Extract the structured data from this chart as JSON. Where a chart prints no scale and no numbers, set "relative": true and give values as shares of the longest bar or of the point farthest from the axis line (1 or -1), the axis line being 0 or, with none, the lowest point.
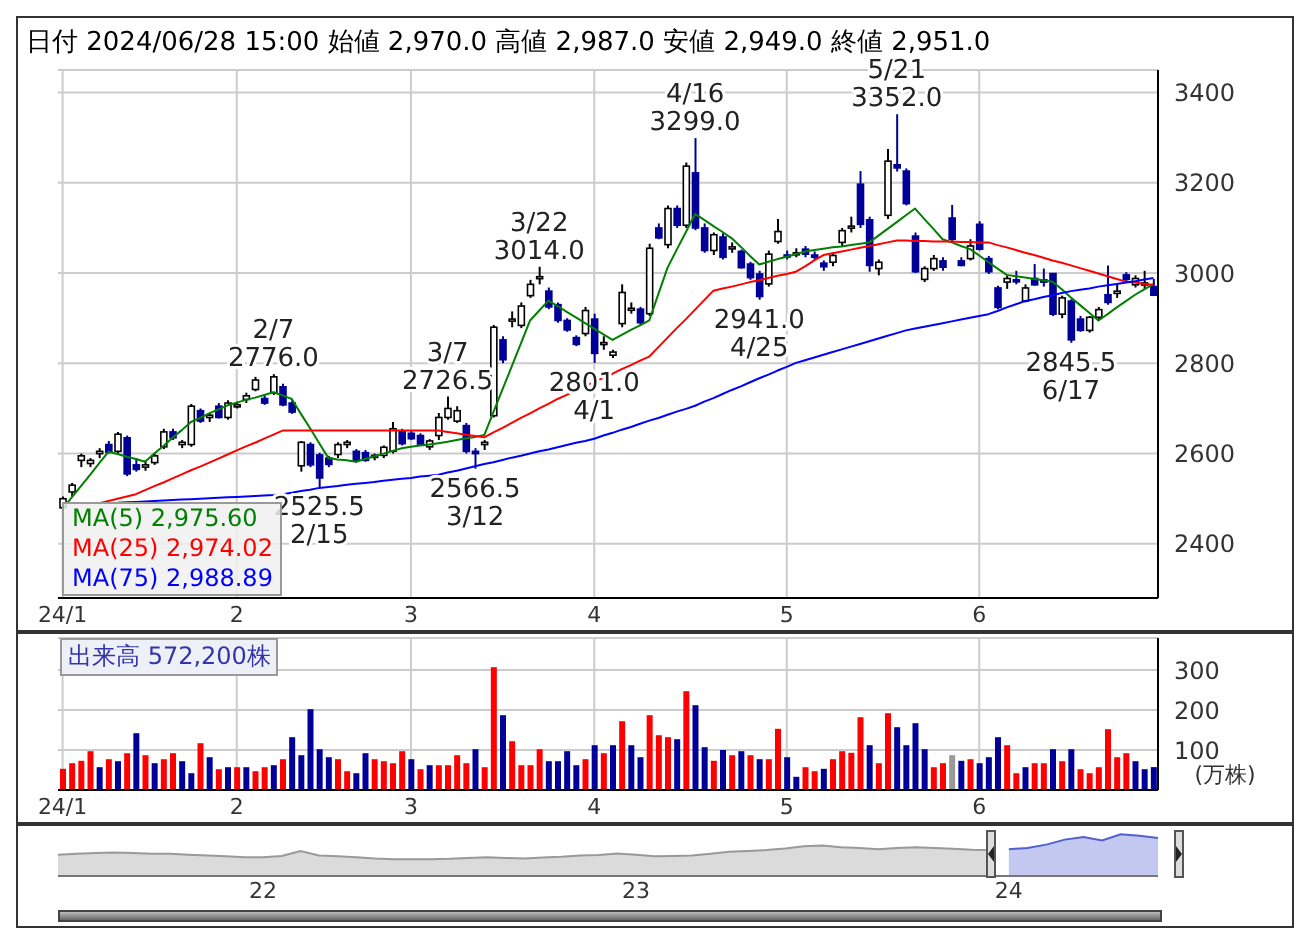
{
  "chart_data": [
    {
      "type": "candlestick",
      "title": "日付 2024/06/28 15:00 始値 2,970.0 高値 2,987.0 安値 2,949.0 終値 2,951.0",
      "categories": [
        "24/1",
        null,
        null,
        null,
        null,
        null,
        null,
        null,
        null,
        null,
        null,
        null,
        null,
        null,
        null,
        null,
        null,
        null,
        null,
        "2",
        null,
        null,
        null,
        null,
        null,
        null,
        null,
        null,
        null,
        null,
        null,
        null,
        null,
        null,
        null,
        null,
        null,
        null,
        "3",
        null,
        null,
        null,
        null,
        null,
        null,
        null,
        null,
        null,
        null,
        null,
        null,
        null,
        null,
        null,
        null,
        null,
        null,
        null,
        "4",
        null,
        null,
        null,
        null,
        null,
        null,
        null,
        null,
        null,
        null,
        null,
        null,
        null,
        null,
        null,
        null,
        null,
        null,
        null,
        null,
        "5",
        null,
        null,
        null,
        null,
        null,
        null,
        null,
        null,
        null,
        null,
        null,
        null,
        null,
        null,
        null,
        null,
        null,
        null,
        null,
        null,
        "6",
        null,
        null,
        null,
        null,
        null,
        null,
        null,
        null,
        null,
        null,
        null,
        null,
        null,
        null,
        null,
        null,
        null,
        null,
        null
      ],
      "ohlc": [
        [
          2480,
          2505,
          2470,
          2500
        ],
        [
          2515,
          2535,
          2505,
          2530
        ],
        [
          2585,
          2600,
          2570,
          2595
        ],
        [
          2578,
          2590,
          2570,
          2585
        ],
        [
          2600,
          2612,
          2590,
          2605
        ],
        [
          2620,
          2628,
          2600,
          2603
        ],
        [
          2605,
          2648,
          2600,
          2643
        ],
        [
          2635,
          2640,
          2550,
          2555
        ],
        [
          2575,
          2590,
          2560,
          2565
        ],
        [
          2570,
          2585,
          2562,
          2575
        ],
        [
          2580,
          2600,
          2575,
          2595
        ],
        [
          2615,
          2655,
          2610,
          2648
        ],
        [
          2648,
          2655,
          2630,
          2635
        ],
        [
          2620,
          2630,
          2612,
          2625
        ],
        [
          2620,
          2710,
          2615,
          2705
        ],
        [
          2695,
          2700,
          2668,
          2672
        ],
        [
          2680,
          2690,
          2670,
          2685
        ],
        [
          2705,
          2712,
          2678,
          2680
        ],
        [
          2680,
          2718,
          2675,
          2712
        ],
        [
          2705,
          2715,
          2700,
          2708
        ],
        [
          2720,
          2735,
          2712,
          2728
        ],
        [
          2742,
          2770,
          2738,
          2763
        ],
        [
          2722,
          2730,
          2708,
          2712
        ],
        [
          2735,
          2776.0,
          2730,
          2770
        ],
        [
          2748,
          2755,
          2705,
          2708
        ],
        [
          2712,
          2718,
          2688,
          2692
        ],
        [
          2573,
          2628,
          2560,
          2625
        ],
        [
          2620,
          2625,
          2570,
          2575
        ],
        [
          2597,
          2602,
          2525.5,
          2546
        ],
        [
          2590,
          2595,
          2570,
          2576
        ],
        [
          2598,
          2625,
          2590,
          2620
        ],
        [
          2620,
          2630,
          2612,
          2625
        ],
        [
          2605,
          2610,
          2580,
          2585
        ],
        [
          2602,
          2608,
          2582,
          2585
        ],
        [
          2592,
          2600,
          2585,
          2596
        ],
        [
          2596,
          2618,
          2590,
          2614
        ],
        [
          2605,
          2670,
          2600,
          2655
        ],
        [
          2650,
          2655,
          2618,
          2622
        ],
        [
          2645,
          2650,
          2630,
          2633
        ],
        [
          2640,
          2645,
          2618,
          2621
        ],
        [
          2615,
          2632,
          2608,
          2628
        ],
        [
          2640,
          2690,
          2630,
          2680
        ],
        [
          2680,
          2726.5,
          2675,
          2700
        ],
        [
          2672,
          2705,
          2668,
          2695
        ],
        [
          2662,
          2668,
          2600,
          2605
        ],
        [
          2605,
          2612,
          2566.5,
          2600
        ],
        [
          2620,
          2630,
          2608,
          2625
        ],
        [
          2684,
          2885,
          2680,
          2880
        ],
        [
          2852,
          2860,
          2800,
          2808
        ],
        [
          2895,
          2915,
          2880,
          2898
        ],
        [
          2884,
          2935,
          2878,
          2927
        ],
        [
          2950,
          2985,
          2945,
          2975
        ],
        [
          2990,
          3014.0,
          2975,
          2992
        ],
        [
          2960,
          2968,
          2920,
          2925
        ],
        [
          2930,
          2935,
          2890,
          2895
        ],
        [
          2895,
          2900,
          2870,
          2874
        ],
        [
          2857,
          2862,
          2838,
          2842
        ],
        [
          2866,
          2925,
          2860,
          2917
        ],
        [
          2898,
          2910,
          2801.0,
          2822
        ],
        [
          2842,
          2860,
          2830,
          2846
        ],
        [
          2818,
          2830,
          2812,
          2825
        ],
        [
          2888,
          2975,
          2880,
          2957
        ],
        [
          2920,
          2935,
          2910,
          2922
        ],
        [
          2920,
          2925,
          2885,
          2890
        ],
        [
          2910,
          3065,
          2905,
          3055
        ],
        [
          3100,
          3110,
          3075,
          3078
        ],
        [
          3063,
          3150,
          3055,
          3143
        ],
        [
          3143,
          3150,
          3100,
          3106
        ],
        [
          3106,
          3245,
          3100,
          3237
        ],
        [
          3222,
          3299.0,
          3095,
          3100
        ],
        [
          3100,
          3110,
          3045,
          3050
        ],
        [
          3050,
          3090,
          3040,
          3085
        ],
        [
          3080,
          3088,
          3030,
          3035
        ],
        [
          3055,
          3068,
          3045,
          3058
        ],
        [
          3048,
          3052,
          3010,
          3012
        ],
        [
          3020,
          3025,
          2985,
          2990
        ],
        [
          2998,
          3005,
          2941.0,
          2948
        ],
        [
          2976,
          3050,
          2970,
          3042
        ],
        [
          3070,
          3120,
          3065,
          3092
        ],
        [
          3040,
          3050,
          3030,
          3038
        ],
        [
          3042,
          3055,
          3035,
          3045
        ],
        [
          3053,
          3060,
          3035,
          3042
        ],
        [
          3040,
          3048,
          3030,
          3035
        ],
        [
          3022,
          3028,
          3005,
          3014
        ],
        [
          3024,
          3045,
          3015,
          3039
        ],
        [
          3068,
          3100,
          3060,
          3094
        ],
        [
          3100,
          3125,
          3090,
          3104
        ],
        [
          3197,
          3226,
          3100,
          3108
        ],
        [
          3118,
          3125,
          3003,
          3017
        ],
        [
          3010,
          3030,
          2995,
          3024
        ],
        [
          3128,
          3275,
          3120,
          3248
        ],
        [
          3240,
          3352.0,
          3225,
          3233
        ],
        [
          3226,
          3232,
          3150,
          3154
        ],
        [
          3082,
          3090,
          3000,
          3003
        ],
        [
          2986,
          3015,
          2980,
          3010
        ],
        [
          3010,
          3040,
          3005,
          3032
        ],
        [
          3027,
          3035,
          3005,
          3013
        ],
        [
          3122,
          3151,
          3070,
          3075
        ],
        [
          3027,
          3035,
          3015,
          3017
        ],
        [
          3032,
          3075,
          3028,
          3060
        ],
        [
          3108,
          3115,
          3050,
          3053
        ],
        [
          3032,
          3038,
          2998,
          3003
        ],
        [
          2967,
          2972,
          2920,
          2924
        ],
        [
          2980,
          2995,
          2965,
          2988
        ],
        [
          2985,
          3005,
          2975,
          2982
        ],
        [
          2938,
          2975,
          2935,
          2967
        ],
        [
          2988,
          3020,
          2972,
          2974
        ],
        [
          2985,
          3010,
          2970,
          2980
        ],
        [
          2999,
          3000,
          2905,
          2909
        ],
        [
          2909,
          2950,
          2900,
          2945
        ],
        [
          2938,
          2942,
          2845.5,
          2852
        ],
        [
          2898,
          2905,
          2870,
          2873
        ],
        [
          2873,
          2905,
          2868,
          2902
        ],
        [
          2902,
          2925,
          2895,
          2919
        ],
        [
          2952,
          3017,
          2930,
          2935
        ],
        [
          2955,
          2975,
          2945,
          2960
        ],
        [
          2996,
          3002,
          2980,
          2986
        ],
        [
          2974,
          2995,
          2968,
          2988
        ],
        [
          2975,
          3005,
          2965,
          2978
        ],
        [
          2970,
          2987.0,
          2949.0,
          2951.0
        ]
      ],
      "colors": [
        "#ffffff",
        "#ffffff",
        "#ffffff",
        "#ffffff",
        "#ffffff",
        "#000099",
        "#ffffff",
        "#000099",
        "#000099",
        "#ffffff",
        "#ffffff",
        "#ffffff",
        "#000099",
        "#ffffff",
        "#ffffff",
        "#000099",
        "#ffffff",
        "#000099",
        "#ffffff",
        "#ffffff",
        "#ffffff",
        "#ffffff",
        "#000099",
        "#ffffff",
        "#000099",
        "#000099",
        "#ffffff",
        "#000099",
        "#000099",
        "#000099",
        "#ffffff",
        "#ffffff",
        "#000099",
        "#000099",
        "#ffffff",
        "#ffffff",
        "#ffffff",
        "#000099",
        "#000099",
        "#000099",
        "#ffffff",
        "#ffffff",
        "#ffffff",
        "#ffffff",
        "#000099",
        "#000099",
        "#ffffff",
        "#ffffff",
        "#000099",
        "#ffffff",
        "#ffffff",
        "#ffffff",
        "#ffffff",
        "#000099",
        "#000099",
        "#000099",
        "#000099",
        "#ffffff",
        "#000099",
        "#ffffff",
        "#ffffff",
        "#ffffff",
        "#ffffff",
        "#000099",
        "#ffffff",
        "#000099",
        "#ffffff",
        "#000099",
        "#ffffff",
        "#000099",
        "#000099",
        "#ffffff",
        "#000099",
        "#ffffff",
        "#000099",
        "#000099",
        "#000099",
        "#ffffff",
        "#ffffff",
        "#000099",
        "#ffffff",
        "#000099",
        "#000099",
        "#000099",
        "#ffffff",
        "#ffffff",
        "#ffffff",
        "#000099",
        "#000099",
        "#ffffff",
        "#ffffff",
        "#000099",
        "#000099",
        "#000099",
        "#ffffff",
        "#ffffff",
        "#000099",
        "#000099",
        "#000099",
        "#ffffff",
        "#000099",
        "#000099",
        "#000099",
        "#ffffff",
        "#000099",
        "#ffffff",
        "#000099",
        "#000099",
        "#000099",
        "#ffffff",
        "#000099",
        "#000099",
        "#ffffff",
        "#ffffff",
        "#000099",
        "#ffffff",
        "#000099",
        "#ffffff",
        "#ffffff",
        "#000099"
      ],
      "series": [
        {
          "name": "MA(5) 2,975.60",
          "type": "line",
          "color": "#008000",
          "values": [
            2478,
            2503,
            2528,
            2553,
            2579,
            2604,
            2599,
            2593,
            2588,
            2582,
            2600,
            2617,
            2635,
            2652,
            2670,
            2679,
            2689,
            2698,
            2707,
            2713,
            2719,
            2724,
            2730,
            2736,
            2729,
            2721,
            2688,
            2656,
            2623,
            2590,
            2587,
            2585,
            2582,
            2588,
            2594,
            2600,
            2606,
            2612,
            2615,
            2618,
            2620,
            2623,
            2626,
            2630,
            2634,
            2637,
            2641,
            2692,
            2743,
            2793,
            2844,
            2895,
            2917,
            2939,
            2927,
            2914,
            2902,
            2889,
            2877,
            2864,
            2852,
            2863,
            2874,
            2884,
            2895,
            2954,
            3012,
            3052,
            3091,
            3131,
            3118,
            3104,
            3091,
            3077,
            3058,
            3038,
            3019,
            3025,
            3031,
            3036,
            3042,
            3048,
            3051,
            3054,
            3057,
            3059,
            3062,
            3065,
            3068,
            3083,
            3098,
            3113,
            3128,
            3143,
            3120,
            3098,
            3075,
            3068,
            3060,
            3053,
            3039,
            3024,
            3010,
            2996,
            2993,
            2990,
            2987,
            2984,
            2981,
            2964,
            2946,
            2929,
            2912,
            2895,
            2909,
            2924,
            2938,
            2952,
            2964,
            2975.6
          ]
        },
        {
          "name": "MA(25) 2,974.02",
          "type": "line",
          "color": "#ff0000",
          "values": [
            null,
            null,
            null,
            null,
            2490,
            2495,
            2500,
            2505,
            2510,
            2519,
            2528,
            2536,
            2545,
            2554,
            2563,
            2571,
            2580,
            2589,
            2598,
            2607,
            2616,
            2624,
            2633,
            2642,
            2651,
            2651,
            2651,
            2651,
            2651,
            2651,
            2651,
            2651,
            2651,
            2651,
            2651,
            2651,
            2651,
            2651,
            2651,
            2651,
            2651,
            2651,
            2648,
            2645,
            2642,
            2639,
            2636,
            2647,
            2657,
            2668,
            2679,
            2689,
            2700,
            2710,
            2721,
            2730,
            2740,
            2749,
            2759,
            2768,
            2777,
            2787,
            2796,
            2806,
            2815,
            2836,
            2857,
            2878,
            2898,
            2919,
            2940,
            2961,
            2966,
            2970,
            2975,
            2980,
            2984,
            2989,
            2994,
            2998,
            3003,
            3015,
            3028,
            3040,
            3044,
            3048,
            3052,
            3056,
            3060,
            3064,
            3068,
            3072,
            3072,
            3071,
            3071,
            3070,
            3070,
            3070,
            3069,
            3069,
            3068,
            3068,
            3062,
            3057,
            3051,
            3045,
            3040,
            3034,
            3028,
            3023,
            3017,
            3011,
            3005,
            2999,
            2993,
            2987,
            2981,
            2979,
            2976,
            2974.02
          ]
        },
        {
          "name": "MA(75) 2,988.89",
          "type": "line",
          "color": "#0000ff",
          "values": [
            null,
            null,
            null,
            null,
            null,
            null,
            2491,
            2492,
            2493,
            2494,
            2495,
            2496,
            2497,
            2498,
            2499,
            2500,
            2501,
            2502,
            2503,
            2504,
            2505,
            2506,
            2507,
            2508,
            2510,
            2513,
            2517,
            2520,
            2524,
            2526,
            2528,
            2531,
            2533,
            2535,
            2537,
            2540,
            2542,
            2544,
            2546,
            2549,
            2551,
            2553,
            2558,
            2562,
            2567,
            2572,
            2577,
            2581,
            2586,
            2591,
            2595,
            2600,
            2605,
            2609,
            2614,
            2619,
            2624,
            2628,
            2633,
            2640,
            2646,
            2653,
            2659,
            2666,
            2673,
            2679,
            2686,
            2693,
            2699,
            2706,
            2715,
            2723,
            2732,
            2741,
            2749,
            2758,
            2767,
            2775,
            2784,
            2792,
            2801,
            2807,
            2813,
            2819,
            2825,
            2831,
            2837,
            2843,
            2849,
            2855,
            2861,
            2867,
            2873,
            2877,
            2881,
            2885,
            2889,
            2893,
            2897,
            2901,
            2905,
            2909,
            2916,
            2924,
            2931,
            2938,
            2942,
            2947,
            2951,
            2956,
            2960,
            2963,
            2966,
            2970,
            2973,
            2976,
            2979,
            2982,
            2986,
            2988.89
          ]
        }
      ],
      "annotations": [
        {
          "text": "2/7\n2776.0",
          "y": 2776
        },
        {
          "text": "2525.5\n2/15",
          "y": 2525.5
        },
        {
          "text": "3/7\n2726.5",
          "y": 2726.5
        },
        {
          "text": "2566.5\n3/12",
          "y": 2566.5
        },
        {
          "text": "3/22\n3014.0",
          "y": 3014
        },
        {
          "text": "2801.0\n4/1",
          "y": 2801
        },
        {
          "text": "4/16\n3299.0",
          "y": 3299
        },
        {
          "text": "2941.0\n4/25",
          "y": 2941
        },
        {
          "text": "5/21\n3352.0",
          "y": 3352
        },
        {
          "text": "2845.5\n6/17",
          "y": 2845.5
        }
      ],
      "ylim": [
        2280,
        3450
      ],
      "yticks": [
        2400,
        2600,
        2800,
        3000,
        3200,
        3400
      ],
      "grid": true,
      "legend": "bottom left"
    },
    {
      "type": "bar",
      "title": "出来高 572,200株",
      "ylabel": "(万株)",
      "categories": [
        "24/1",
        null,
        null,
        null,
        null,
        null,
        null,
        null,
        null,
        null,
        null,
        null,
        null,
        null,
        null,
        null,
        null,
        null,
        null,
        "2",
        null,
        null,
        null,
        null,
        null,
        null,
        null,
        null,
        null,
        null,
        null,
        null,
        null,
        null,
        null,
        null,
        null,
        null,
        "3",
        null,
        null,
        null,
        null,
        null,
        null,
        null,
        null,
        null,
        null,
        null,
        null,
        null,
        null,
        null,
        null,
        null,
        null,
        null,
        "4",
        null,
        null,
        null,
        null,
        null,
        null,
        null,
        null,
        null,
        null,
        null,
        null,
        null,
        null,
        null,
        null,
        null,
        null,
        null,
        null,
        "5",
        null,
        null,
        null,
        null,
        null,
        null,
        null,
        null,
        null,
        null,
        null,
        null,
        null,
        null,
        null,
        null,
        null,
        null,
        null,
        null,
        "6",
        null,
        null,
        null,
        null,
        null,
        null,
        null,
        null,
        null,
        null,
        null,
        null,
        null,
        null,
        null,
        null,
        null,
        null,
        null
      ],
      "values": [
        53,
        67,
        73,
        97,
        57,
        77,
        72,
        92,
        142,
        87,
        67,
        77,
        92,
        72,
        42,
        117,
        82,
        52,
        57,
        57,
        57,
        47,
        57,
        62,
        77,
        132,
        87,
        202,
        102,
        82,
        77,
        47,
        42,
        92,
        77,
        72,
        67,
        97,
        77,
        52,
        62,
        62,
        62,
        87,
        67,
        102,
        57,
        307,
        187,
        122,
        62,
        62,
        102,
        72,
        72,
        97,
        62,
        77,
        112,
        92,
        112,
        172,
        112,
        82,
        187,
        137,
        132,
        127,
        247,
        212,
        107,
        73,
        100,
        87,
        97,
        87,
        77,
        77,
        153,
        82,
        33,
        57,
        47,
        53,
        77,
        97,
        93,
        182,
        112,
        67,
        192,
        157,
        112,
        167,
        102,
        57,
        67,
        87,
        73,
        77,
        67,
        82,
        132,
        112,
        42,
        57,
        67,
        67,
        102,
        72,
        102,
        52,
        42,
        57,
        152,
        82,
        92,
        72,
        52,
        57.22
      ],
      "colors": [
        "#ff0000",
        "#ff0000",
        "#ff0000",
        "#ff0000",
        "#000099",
        "#ff0000",
        "#000099",
        "#ff0000",
        "#000099",
        "#ff0000",
        "#000099",
        "#ff0000",
        "#ff0000",
        "#000099",
        "#000099",
        "#ff0000",
        "#000099",
        "#ff0000",
        "#000099",
        "#ff0000",
        "#000099",
        "#ff0000",
        "#ff0000",
        "#000099",
        "#ff0000",
        "#000099",
        "#000099",
        "#000099",
        "#000099",
        "#000099",
        "#ff0000",
        "#ff0000",
        "#000099",
        "#000099",
        "#ff0000",
        "#ff0000",
        "#ff0000",
        "#ff0000",
        "#000099",
        "#ff0000",
        "#000099",
        "#ff0000",
        "#ff0000",
        "#ff0000",
        "#ff0000",
        "#000099",
        "#ff0000",
        "#ff0000",
        "#000099",
        "#ff0000",
        "#ff0000",
        "#ff0000",
        "#ff0000",
        "#000099",
        "#000099",
        "#000099",
        "#000099",
        "#ff0000",
        "#000099",
        "#ff0000",
        "#000099",
        "#ff0000",
        "#000099",
        "#000099",
        "#ff0000",
        "#ff0000",
        "#ff0000",
        "#000099",
        "#ff0000",
        "#000099",
        "#000099",
        "#ff0000",
        "#000099",
        "#ff0000",
        "#000099",
        "#ff0000",
        "#000099",
        "#ff0000",
        "#ff0000",
        "#000099",
        "#000099",
        "#ff0000",
        "#ff0000",
        "#000099",
        "#ff0000",
        "#ff0000",
        "#ff0000",
        "#ff0000",
        "#000099",
        "#ff0000",
        "#ff0000",
        "#000099",
        "#000099",
        "#000099",
        "#000099",
        "#ff0000",
        "#ff0000",
        "#999999",
        "#000099",
        "#ff0000",
        "#000099",
        "#000099",
        "#000099",
        "#ff0000",
        "#ff0000",
        "#000099",
        "#ff0000",
        "#ff0000",
        "#000099",
        "#ff0000",
        "#000099",
        "#ff0000",
        "#ff0000",
        "#ff0000",
        "#ff0000",
        "#ff0000",
        "#ff0000",
        "#000099",
        "#000099",
        "#000099"
      ],
      "ylim": [
        0,
        380
      ],
      "yticks": [
        100,
        200,
        300
      ],
      "grid": true
    },
    {
      "type": "area",
      "relative": true,
      "tick_labels": "x",
      "categories": [
        null,
        null,
        null,
        null,
        null,
        null,
        null,
        null,
        null,
        null,
        null,
        "22",
        null,
        null,
        null,
        null,
        null,
        null,
        null,
        null,
        null,
        null,
        null,
        null,
        null,
        null,
        null,
        null,
        null,
        null,
        null,
        "23",
        null,
        null,
        null,
        null,
        null,
        null,
        null,
        null,
        null,
        null,
        null,
        null,
        null,
        null,
        null,
        null,
        null,
        null,
        null,
        "24",
        null,
        null,
        null,
        null,
        null,
        null,
        null,
        null
      ],
      "series": [
        {
          "color": "#999999",
          "values": [
            0.51,
            0.53,
            0.55,
            0.56,
            0.55,
            0.53,
            0.53,
            0.51,
            0.49,
            0.47,
            0.45,
            0.45,
            0.48,
            0.6,
            0.49,
            0.47,
            0.45,
            0.42,
            0.4,
            0.4,
            0.4,
            0.41,
            0.43,
            0.45,
            0.43,
            0.42,
            0.44,
            0.46,
            0.49,
            0.5,
            0.54,
            0.51,
            0.47,
            0.48,
            0.49,
            0.53,
            0.58,
            0.6,
            0.62,
            0.66,
            0.71,
            0.73,
            0.69,
            0.67,
            0.64,
            0.67,
            0.69,
            0.67,
            0.65,
            0.63,
            0.62,
            null,
            null,
            null,
            null,
            null,
            null,
            null,
            null,
            null
          ]
        },
        {
          "color": "#5060d0",
          "values": [
            null,
            null,
            null,
            null,
            null,
            null,
            null,
            null,
            null,
            null,
            null,
            null,
            null,
            null,
            null,
            null,
            null,
            null,
            null,
            null,
            null,
            null,
            null,
            null,
            null,
            null,
            null,
            null,
            null,
            null,
            null,
            null,
            null,
            null,
            null,
            null,
            null,
            null,
            null,
            null,
            null,
            null,
            null,
            null,
            null,
            null,
            null,
            null,
            null,
            null,
            null,
            0.64,
            0.67,
            0.75,
            0.87,
            0.93,
            0.85,
            1,
            0.96,
            0.91
          ]
        }
      ]
    }
  ]
}
